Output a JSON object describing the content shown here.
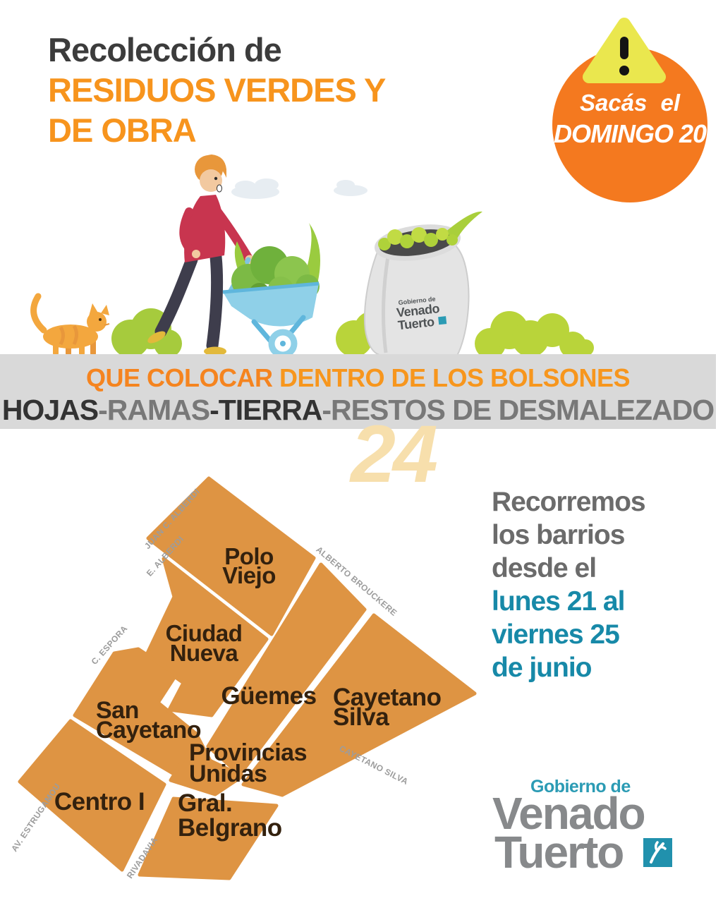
{
  "title": {
    "line1": "Recolección de",
    "line2": "RESIDUOS VERDES Y",
    "line3": "DE OBRA"
  },
  "badge": {
    "icon": "warning-triangle-icon",
    "line1": "Sacás el",
    "line2": "DOMINGO 20"
  },
  "illustration": {
    "elements": [
      "cloud",
      "man-with-wheelbarrow",
      "cat",
      "bushes",
      "leaf-bag"
    ],
    "bag_logo": {
      "top": "Gobierno de",
      "name1": "Venado",
      "name2": "Tuerto"
    }
  },
  "band": {
    "line1_a": "QUE COLOCAR ",
    "line1_b": "DENTRO DE LOS BOLSONES",
    "line2_segments": [
      {
        "text": "HOJAS",
        "tone": "dark"
      },
      {
        "text": "-",
        "tone": "mid"
      },
      {
        "text": "RAMAS",
        "tone": "mid"
      },
      {
        "text": "-",
        "tone": "dark"
      },
      {
        "text": "TIERRA",
        "tone": "dark"
      },
      {
        "text": "-",
        "tone": "mid"
      },
      {
        "text": "RESTOS DE DESMALEZADO",
        "tone": "mid"
      }
    ]
  },
  "watermark": "24",
  "map": {
    "neighborhoods": [
      {
        "id": "polo-viejo",
        "lines": [
          "Polo",
          "Viejo"
        ]
      },
      {
        "id": "ciudad-nueva",
        "lines": [
          "Ciudad",
          "Nueva"
        ]
      },
      {
        "id": "san-cayetano",
        "lines": [
          "San",
          "Cayetano"
        ]
      },
      {
        "id": "guemes",
        "lines": [
          "Güemes"
        ]
      },
      {
        "id": "cayetano-silva",
        "lines": [
          "Cayetano",
          "Silva"
        ]
      },
      {
        "id": "provincias-unidas",
        "lines": [
          "Provincias",
          "Unidas"
        ]
      },
      {
        "id": "centro-i",
        "lines": [
          "Centro I"
        ]
      },
      {
        "id": "gral-belgrano",
        "lines": [
          "Gral.",
          "Belgrano"
        ]
      }
    ],
    "streets": [
      {
        "id": "juan-c-alberdi",
        "label": "JUAN C. ALBERDI"
      },
      {
        "id": "e-alberdi",
        "label": "E. ALBERDI"
      },
      {
        "id": "c-espora",
        "label": "C. ESPORA"
      },
      {
        "id": "av-estrugamou",
        "label": "AV. ESTRUGAMOU"
      },
      {
        "id": "rivadavia",
        "label": "RIVADAVIA"
      },
      {
        "id": "alberto-brouckere",
        "label": "ALBERTO BROUCKERE"
      },
      {
        "id": "cayetano-silva-street",
        "label": "CAYETANO SILVA"
      }
    ]
  },
  "schedule": {
    "lines": [
      {
        "text": "Recorremos",
        "tone": "gray"
      },
      {
        "text": "los barrios",
        "tone": "gray"
      },
      {
        "text": "desde el",
        "tone": "gray"
      },
      {
        "text": "lunes 21 al",
        "tone": "teal"
      },
      {
        "text": "viernes 25",
        "tone": "teal"
      },
      {
        "text": "de junio",
        "tone": "teal"
      }
    ]
  },
  "footer_logo": {
    "top": "Gobierno de",
    "name1": "Venado",
    "name2": "Tuerto",
    "icon": "antler-icon"
  },
  "colors": {
    "accent_orange": "#F7941D",
    "badge_orange": "#F4791F",
    "triangle_yellow": "#EAE74E",
    "map_orange": "#DE9443",
    "band_gray": "#D9D9D9",
    "teal": "#1789A8",
    "logo_gray": "#87898B",
    "logo_teal": "#2B9BB4",
    "dark_text": "#3C3C3C"
  }
}
